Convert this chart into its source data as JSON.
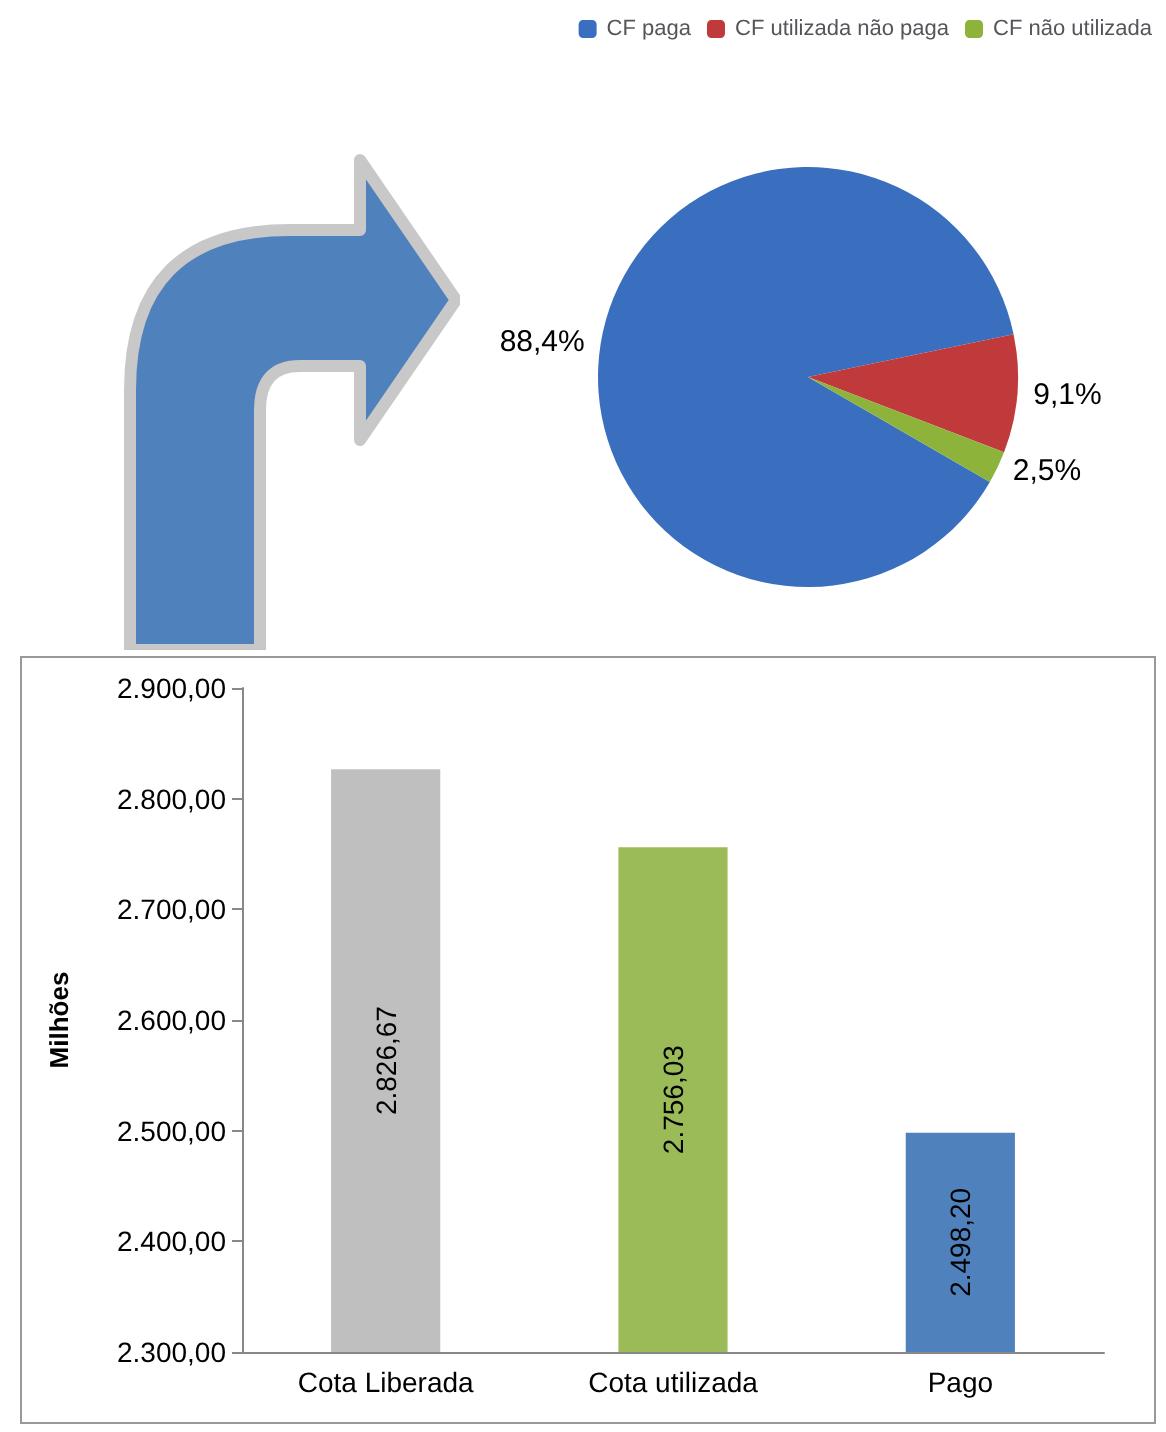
{
  "chart_data": [
    {
      "type": "pie",
      "categories": [
        "CF paga",
        "CF utilizada não paga",
        "CF não utilizada"
      ],
      "values": [
        88.4,
        9.1,
        2.5
      ],
      "colors": [
        "#3a6fbf",
        "#c0393b",
        "#8db33b"
      ],
      "value_labels": [
        "88,4%",
        "9,1%",
        "2,5%"
      ],
      "legend": "top right"
    },
    {
      "type": "bar",
      "categories": [
        "Cota Liberada",
        "Cota utilizada",
        "Pago"
      ],
      "values": [
        2826.67,
        2756.03,
        2498.2
      ],
      "colors": [
        "#bfbfbf",
        "#9bbb59",
        "#4f81bd"
      ],
      "value_labels": [
        "2.826,67",
        "2.756,03",
        "2.498,20"
      ],
      "ylabel": "Milhões",
      "ylim": [
        2300,
        2900
      ],
      "yticks": [
        {
          "value": 2300,
          "label": "2.300,00"
        },
        {
          "value": 2400,
          "label": "2.400,00"
        },
        {
          "value": 2500,
          "label": "2.500,00"
        },
        {
          "value": 2600,
          "label": "2.600,00"
        },
        {
          "value": 2700,
          "label": "2.700,00"
        },
        {
          "value": 2800,
          "label": "2.800,00"
        },
        {
          "value": 2900,
          "label": "2.900,00"
        }
      ],
      "grid": false
    }
  ]
}
